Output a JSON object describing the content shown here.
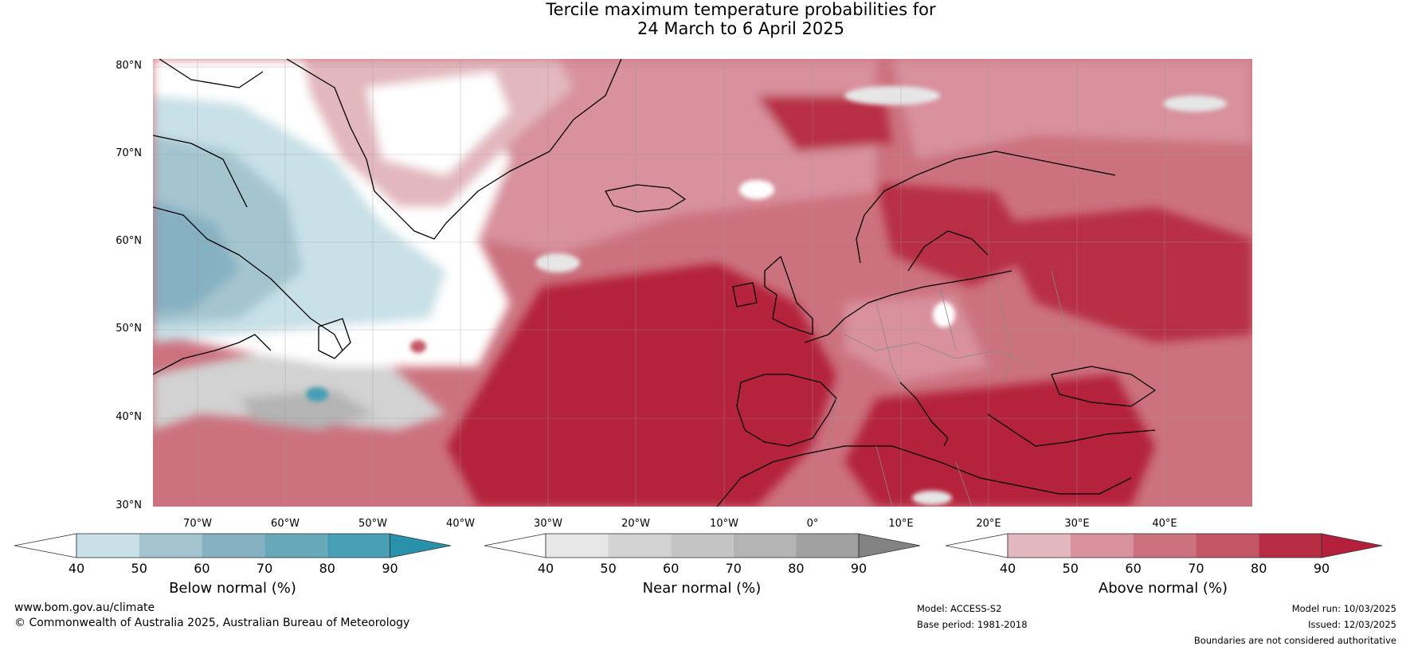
{
  "title": {
    "line1": "Tercile maximum temperature probabilities for",
    "line2": "24 March to 6 April 2025"
  },
  "map": {
    "latitude_labels": [
      "80°N",
      "70°N",
      "60°N",
      "50°N",
      "40°N",
      "30°N"
    ],
    "longitude_labels": [
      "70°W",
      "60°W",
      "50°W",
      "40°W",
      "30°W",
      "20°W",
      "10°W",
      "0°",
      "10°E",
      "20°E",
      "30°E",
      "40°E"
    ],
    "region": "North Atlantic and Europe",
    "dominant_signal": "Above normal"
  },
  "colorbars": [
    {
      "title": "Below normal (%)",
      "ticks": [
        "40",
        "50",
        "60",
        "70",
        "80",
        "90"
      ],
      "colors": [
        "#ffffff",
        "#c8e0e7",
        "#a4c5cf",
        "#86b1c2",
        "#67a9b8",
        "#479fb5",
        "#2a91ab"
      ]
    },
    {
      "title": "Near normal (%)",
      "ticks": [
        "40",
        "50",
        "60",
        "70",
        "80",
        "90"
      ],
      "colors": [
        "#ffffff",
        "#e6e6e6",
        "#d2d2d2",
        "#c4c4c4",
        "#b4b4b4",
        "#a0a0a0",
        "#828282"
      ]
    },
    {
      "title": "Above normal (%)",
      "ticks": [
        "40",
        "50",
        "60",
        "70",
        "80",
        "90"
      ],
      "colors": [
        "#ffffff",
        "#e2b7bd",
        "#d8919d",
        "#cc727f",
        "#c35665",
        "#b72e44",
        "#b4203b"
      ]
    }
  ],
  "footer": {
    "website": "www.bom.gov.au/climate",
    "copyright": "© Commonwealth of Australia 2025, Australian Bureau of Meteorology",
    "model": "Model: ACCESS-S2",
    "base_period": "Base period: 1981-2018",
    "model_run": "Model run: 10/03/2025",
    "issued": "Issued: 12/03/2025",
    "disclaimer": "Boundaries are not considered authoritative"
  }
}
